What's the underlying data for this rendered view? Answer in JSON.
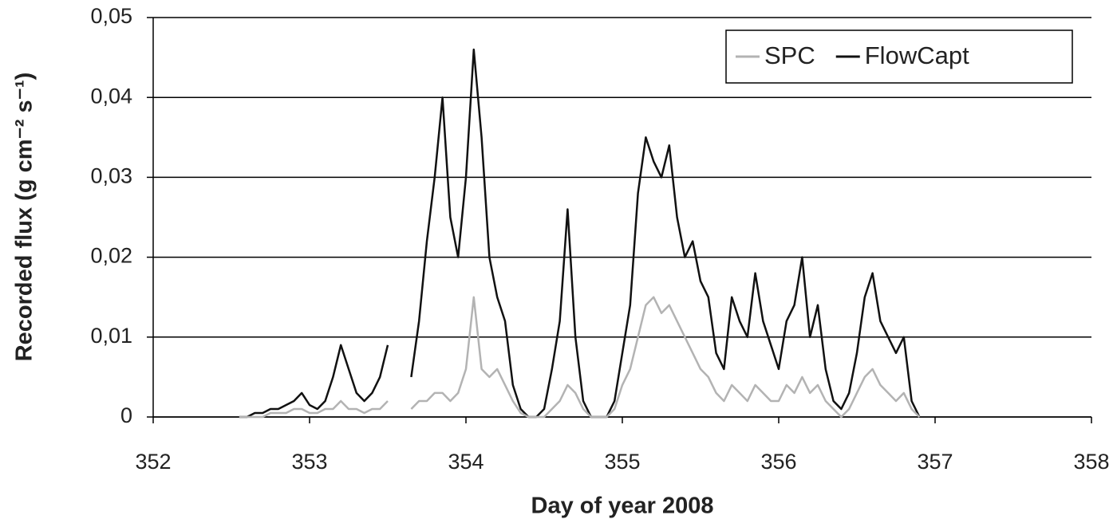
{
  "chart_data": {
    "type": "line",
    "x_label": "Day of year 2008",
    "y_label": "Recorded flux (g cm⁻² s⁻¹)",
    "x": [
      352.55,
      352.6,
      352.65,
      352.7,
      352.75,
      352.8,
      352.85,
      352.9,
      352.95,
      353,
      353.05,
      353.1,
      353.15,
      353.2,
      353.25,
      353.3,
      353.35,
      353.4,
      353.45,
      353.5,
      353.55,
      353.6,
      353.65,
      353.7,
      353.75,
      353.8,
      353.85,
      353.9,
      353.95,
      354,
      354.05,
      354.1,
      354.15,
      354.2,
      354.25,
      354.3,
      354.35,
      354.4,
      354.45,
      354.5,
      354.55,
      354.6,
      354.65,
      354.7,
      354.75,
      354.8,
      354.85,
      354.9,
      354.95,
      355,
      355.05,
      355.1,
      355.15,
      355.2,
      355.25,
      355.3,
      355.35,
      355.4,
      355.45,
      355.5,
      355.55,
      355.6,
      355.65,
      355.7,
      355.75,
      355.8,
      355.85,
      355.9,
      355.95,
      356,
      356.05,
      356.1,
      356.15,
      356.2,
      356.25,
      356.3,
      356.35,
      356.4,
      356.45,
      356.5,
      356.55,
      356.6,
      356.65,
      356.7,
      356.75,
      356.8,
      356.85,
      356.9
    ],
    "series": [
      {
        "name": "FlowCapt",
        "color": "#111111",
        "values": [
          0,
          0,
          0.0005,
          0.0005,
          0.001,
          0.001,
          0.0015,
          0.002,
          0.003,
          0.0015,
          0.001,
          0.002,
          0.005,
          0.009,
          0.006,
          0.003,
          0.002,
          0.003,
          0.005,
          0.009,
          null,
          null,
          0.005,
          0.012,
          0.022,
          0.03,
          0.04,
          0.025,
          0.02,
          0.03,
          0.046,
          0.035,
          0.02,
          0.015,
          0.012,
          0.004,
          0.001,
          0,
          0,
          0.001,
          0.006,
          0.012,
          0.026,
          0.01,
          0.002,
          0,
          0,
          0,
          0.002,
          0.008,
          0.014,
          0.028,
          0.035,
          0.032,
          0.03,
          0.034,
          0.025,
          0.02,
          0.022,
          0.017,
          0.015,
          0.008,
          0.006,
          0.015,
          0.012,
          0.01,
          0.018,
          0.012,
          0.009,
          0.006,
          0.012,
          0.014,
          0.02,
          0.01,
          0.014,
          0.006,
          0.002,
          0.001,
          0.003,
          0.008,
          0.015,
          0.018,
          0.012,
          0.01,
          0.008,
          0.01,
          0.002,
          0
        ]
      },
      {
        "name": "SPC",
        "color": "#b3b3b3",
        "values": [
          0,
          0,
          0,
          0,
          0.0005,
          0.0005,
          0.0005,
          0.001,
          0.001,
          0.0005,
          0.0005,
          0.001,
          0.001,
          0.002,
          0.001,
          0.001,
          0.0005,
          0.001,
          0.001,
          0.002,
          null,
          null,
          0.001,
          0.002,
          0.002,
          0.003,
          0.003,
          0.002,
          0.003,
          0.006,
          0.015,
          0.006,
          0.005,
          0.006,
          0.004,
          0.002,
          0.0005,
          0,
          0,
          0,
          0.001,
          0.002,
          0.004,
          0.003,
          0.001,
          0,
          0,
          0,
          0.001,
          0.004,
          0.006,
          0.01,
          0.014,
          0.015,
          0.013,
          0.014,
          0.012,
          0.01,
          0.008,
          0.006,
          0.005,
          0.003,
          0.002,
          0.004,
          0.003,
          0.002,
          0.004,
          0.003,
          0.002,
          0.002,
          0.004,
          0.003,
          0.005,
          0.003,
          0.004,
          0.002,
          0.001,
          0,
          0.001,
          0.003,
          0.005,
          0.006,
          0.004,
          0.003,
          0.002,
          0.003,
          0.001,
          0
        ]
      }
    ],
    "legend_order": [
      1,
      0
    ],
    "legend_position": "upper right",
    "xlim": [
      352,
      358
    ],
    "xticks": [
      352,
      353,
      354,
      355,
      356,
      357,
      358
    ],
    "ylim": [
      0,
      0.05
    ],
    "yticks": [
      0,
      {
        "value": 0.01,
        "label": "0,01"
      },
      {
        "value": 0.02,
        "label": "0,02"
      },
      {
        "value": 0.03,
        "label": "0,03"
      },
      {
        "value": 0.04,
        "label": "0,04"
      },
      {
        "value": 0.05,
        "label": "0,05"
      }
    ],
    "grid": true
  }
}
